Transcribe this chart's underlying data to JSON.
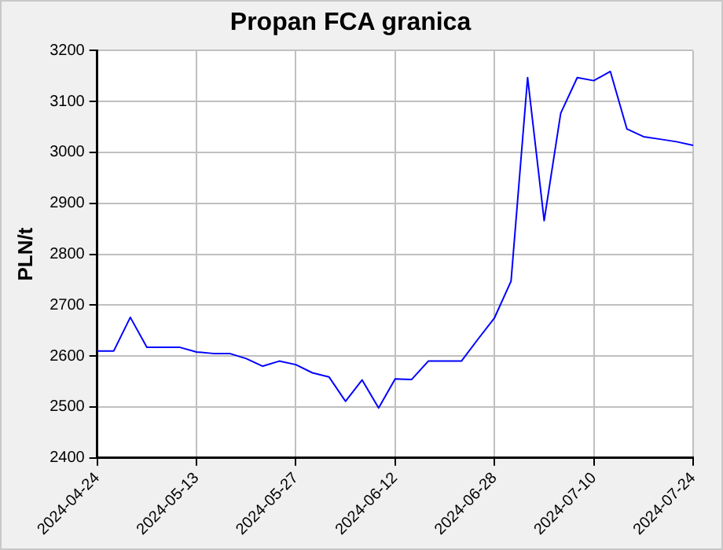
{
  "chart_data": {
    "type": "line",
    "title": "Propan FCA granica",
    "ylabel": "PLN/t",
    "categories": [
      "2024-04-24",
      null,
      null,
      null,
      null,
      null,
      "2024-05-13",
      null,
      null,
      null,
      null,
      null,
      "2024-05-27",
      null,
      null,
      null,
      null,
      null,
      "2024-06-12",
      null,
      null,
      null,
      null,
      null,
      "2024-06-28",
      null,
      null,
      null,
      null,
      null,
      "2024-07-10",
      null,
      null,
      null,
      null,
      null,
      "2024-07-24"
    ],
    "series": [
      {
        "color": "#0000ff",
        "values": [
          2610,
          2610,
          2676,
          2617,
          2617,
          2617,
          2608,
          2605,
          2605,
          2595,
          2580,
          2590,
          2583,
          2567,
          2559,
          2511,
          2553,
          2498,
          2555,
          2554,
          2590,
          2590,
          2590,
          2633,
          2675,
          2747,
          3147,
          2866,
          3077,
          3147,
          3141,
          3159,
          3046,
          3031,
          3026,
          3021,
          3014
        ]
      }
    ],
    "ylim": [
      2400,
      3200
    ],
    "yticks": [
      2400,
      2500,
      2600,
      2700,
      2800,
      2900,
      3000,
      3100,
      3200
    ],
    "grid": true,
    "legend": false,
    "marker": "none",
    "line_style": "solid"
  }
}
